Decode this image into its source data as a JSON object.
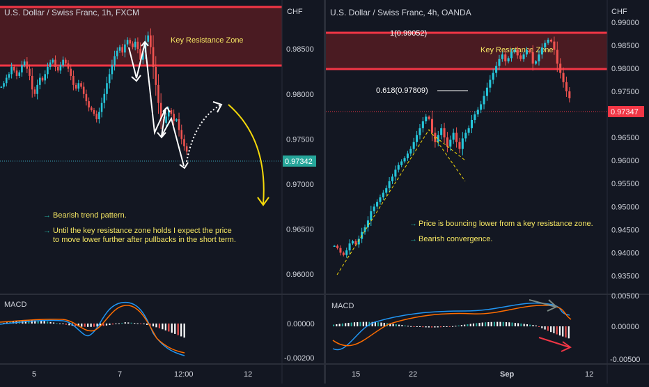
{
  "chart_data": [
    {
      "type": "candlestick",
      "title": "U.S. Dollar / Swiss Franc, 1h, FXCM",
      "currency": "CHF",
      "y_ticks": [
        "0.98500",
        "0.98000",
        "0.97500",
        "0.97000",
        "0.96500",
        "0.96000"
      ],
      "y_tick_values": [
        0.985,
        0.98,
        0.975,
        0.97,
        0.965,
        0.96
      ],
      "ylim": [
        0.9587,
        0.9895
      ],
      "x_ticks": [
        "5",
        "7",
        "12:00",
        "12"
      ],
      "current_price": "0.97342",
      "zone_label": "Key Resistance Zone",
      "notes": [
        "Bearish trend pattern.",
        "Until the key resistance zone holds I expect the price",
        "to move lower further after pullbacks in the short term."
      ],
      "macd": {
        "label": "MACD",
        "y_ticks": [
          "0.00000",
          "-0.00200"
        ]
      },
      "series": [
        {
          "values": [
            0.9808,
            0.9812,
            0.9818,
            0.9822,
            0.983,
            0.9826,
            0.982,
            0.9824,
            0.9832,
            0.9836,
            0.9828,
            0.982,
            0.9805,
            0.98,
            0.981,
            0.9818,
            0.9815,
            0.9822,
            0.983,
            0.9835,
            0.9838,
            0.983,
            0.9826,
            0.9832,
            0.9838,
            0.9834,
            0.9828,
            0.982,
            0.981,
            0.9806,
            0.9812,
            0.9808,
            0.98,
            0.9792,
            0.9785,
            0.9782,
            0.9778,
            0.9772,
            0.978,
            0.979,
            0.98,
            0.9812,
            0.9822,
            0.9832,
            0.9842,
            0.9848,
            0.9852,
            0.9846,
            0.9855,
            0.986,
            0.9856,
            0.9852,
            0.9858,
            0.985,
            0.9838,
            0.9846,
            0.9858,
            0.9865,
            0.9852,
            0.983,
            0.981,
            0.979,
            0.9772,
            0.9768,
            0.9775,
            0.9782,
            0.9778,
            0.977,
            0.9772,
            0.976,
            0.975,
            0.9742,
            0.9736
          ]
        }
      ]
    },
    {
      "type": "candlestick",
      "title": "U.S. Dollar / Swiss Franc, 4h, OANDA",
      "currency": "CHF",
      "y_ticks": [
        "0.99000",
        "0.98500",
        "0.98000",
        "0.97500",
        "0.97000",
        "0.96500",
        "0.96000",
        "0.95500",
        "0.95000",
        "0.94500",
        "0.94000",
        "0.93500"
      ],
      "y_tick_values": [
        0.99,
        0.985,
        0.98,
        0.975,
        0.97,
        0.965,
        0.96,
        0.955,
        0.95,
        0.945,
        0.94,
        0.935
      ],
      "ylim": [
        0.9328,
        0.993
      ],
      "x_ticks": [
        "15",
        "22",
        "Sep",
        "12"
      ],
      "current_price": "0.97347",
      "zone_label": "Key Resistance Zone",
      "fib_top": "1(0.99052)",
      "fib_618": "0.618(0.97809)",
      "notes": [
        "Price is bouncing lower from a key resistance zone.",
        "Bearish convergence."
      ],
      "macd": {
        "label": "MACD",
        "y_ticks": [
          "0.00500",
          "0.00000",
          "-0.00500"
        ]
      },
      "series": [
        {
          "values": [
            0.9415,
            0.941,
            0.94,
            0.9395,
            0.9405,
            0.942,
            0.9425,
            0.9418,
            0.943,
            0.9445,
            0.9455,
            0.947,
            0.949,
            0.95,
            0.951,
            0.952,
            0.953,
            0.954,
            0.9555,
            0.9565,
            0.958,
            0.959,
            0.9598,
            0.9605,
            0.9615,
            0.9625,
            0.964,
            0.9655,
            0.967,
            0.9685,
            0.9695,
            0.969,
            0.966,
            0.964,
            0.9655,
            0.967,
            0.965,
            0.963,
            0.9645,
            0.966,
            0.964,
            0.9625,
            0.9648,
            0.966,
            0.967,
            0.9688,
            0.97,
            0.971,
            0.9722,
            0.974,
            0.9758,
            0.9775,
            0.979,
            0.9805,
            0.982,
            0.983,
            0.9815,
            0.9822,
            0.9835,
            0.984,
            0.9828,
            0.982,
            0.983,
            0.984,
            0.9835,
            0.981,
            0.9815,
            0.983,
            0.9845,
            0.9855,
            0.9862,
            0.9858,
            0.984,
            0.981,
            0.979,
            0.977,
            0.975,
            0.9735
          ]
        }
      ]
    }
  ]
}
